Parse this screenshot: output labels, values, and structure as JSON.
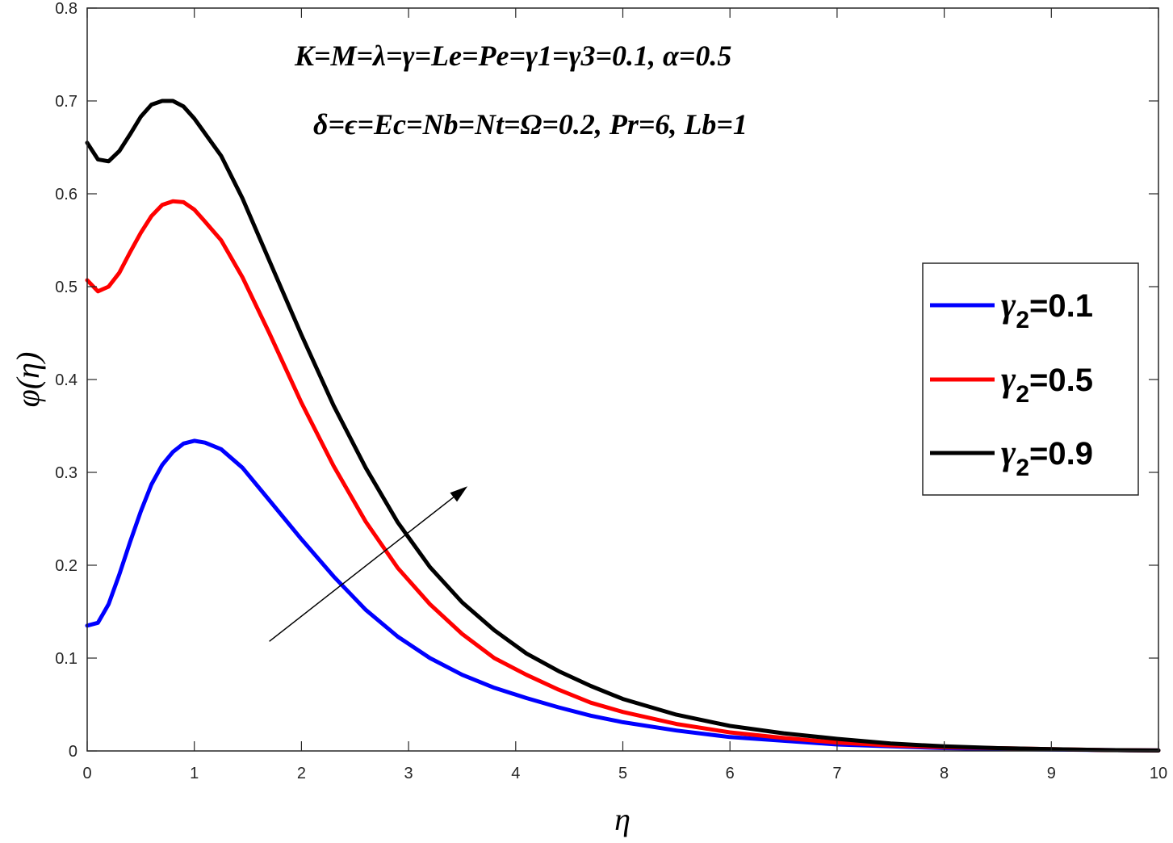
{
  "chart_data": {
    "type": "line",
    "title": "",
    "xlabel": "η",
    "ylabel": "φ(η)",
    "xlim": [
      0,
      10
    ],
    "ylim": [
      0,
      0.8
    ],
    "xticks": [
      "0",
      "1",
      "2",
      "3",
      "4",
      "5",
      "6",
      "7",
      "8",
      "9",
      "10"
    ],
    "yticks": [
      "0",
      "0.1",
      "0.2",
      "0.3",
      "0.4",
      "0.5",
      "0.6",
      "0.7",
      "0.8"
    ],
    "grid": false,
    "legend_position": "right",
    "annotations": [
      "K=M=λ=γ=Le=Pe=γ1=γ3=0.1, α=0.5",
      "δ=ϵ=Ec=Nb=Nt=Ω=0.2, Pr=6, Lb=1"
    ],
    "arrow": {
      "from": [
        1.7,
        0.118
      ],
      "to": [
        3.55,
        0.285
      ],
      "meaning": "increasing γ2"
    },
    "series": [
      {
        "name": "γ2=0.1",
        "legend_symbol": "γ",
        "legend_sub": "2",
        "legend_value": "=0.1",
        "color": "#0000ff",
        "x": [
          0,
          0.1,
          0.2,
          0.3,
          0.4,
          0.5,
          0.6,
          0.7,
          0.8,
          0.9,
          1.0,
          1.1,
          1.25,
          1.45,
          1.7,
          2.0,
          2.3,
          2.6,
          2.9,
          3.2,
          3.5,
          3.8,
          4.1,
          4.4,
          4.7,
          5.0,
          5.5,
          6.0,
          6.5,
          7.0,
          7.5,
          8.0,
          8.5,
          9.0,
          9.5,
          10.0
        ],
        "y": [
          0.135,
          0.138,
          0.158,
          0.19,
          0.225,
          0.258,
          0.287,
          0.308,
          0.322,
          0.331,
          0.334,
          0.332,
          0.325,
          0.305,
          0.27,
          0.228,
          0.188,
          0.152,
          0.123,
          0.1,
          0.082,
          0.068,
          0.057,
          0.047,
          0.038,
          0.031,
          0.022,
          0.015,
          0.011,
          0.007,
          0.005,
          0.003,
          0.002,
          0.0015,
          0.001,
          0.0005
        ]
      },
      {
        "name": "γ2=0.5",
        "legend_symbol": "γ",
        "legend_sub": "2",
        "legend_value": "=0.5",
        "color": "#ff0000",
        "x": [
          0,
          0.1,
          0.2,
          0.3,
          0.4,
          0.5,
          0.6,
          0.7,
          0.8,
          0.9,
          1.0,
          1.1,
          1.25,
          1.45,
          1.7,
          2.0,
          2.3,
          2.6,
          2.9,
          3.2,
          3.5,
          3.8,
          4.1,
          4.4,
          4.7,
          5.0,
          5.5,
          6.0,
          6.5,
          7.0,
          7.5,
          8.0,
          8.5,
          9.0,
          9.5,
          10.0
        ],
        "y": [
          0.507,
          0.495,
          0.5,
          0.515,
          0.537,
          0.558,
          0.576,
          0.588,
          0.592,
          0.591,
          0.583,
          0.57,
          0.55,
          0.51,
          0.45,
          0.375,
          0.307,
          0.247,
          0.197,
          0.158,
          0.126,
          0.1,
          0.082,
          0.066,
          0.052,
          0.042,
          0.029,
          0.02,
          0.014,
          0.009,
          0.006,
          0.004,
          0.003,
          0.002,
          0.001,
          0.0005
        ]
      },
      {
        "name": "γ2=0.9",
        "legend_symbol": "γ",
        "legend_sub": "2",
        "legend_value": "=0.9",
        "color": "#000000",
        "x": [
          0,
          0.1,
          0.2,
          0.3,
          0.4,
          0.5,
          0.6,
          0.7,
          0.8,
          0.9,
          1.0,
          1.1,
          1.25,
          1.45,
          1.7,
          2.0,
          2.3,
          2.6,
          2.9,
          3.2,
          3.5,
          3.8,
          4.1,
          4.4,
          4.7,
          5.0,
          5.5,
          6.0,
          6.5,
          7.0,
          7.5,
          8.0,
          8.5,
          9.0,
          9.5,
          10.0
        ],
        "y": [
          0.655,
          0.637,
          0.635,
          0.646,
          0.664,
          0.683,
          0.696,
          0.7,
          0.7,
          0.694,
          0.681,
          0.665,
          0.641,
          0.595,
          0.528,
          0.448,
          0.372,
          0.305,
          0.246,
          0.198,
          0.16,
          0.13,
          0.105,
          0.086,
          0.07,
          0.056,
          0.039,
          0.027,
          0.019,
          0.013,
          0.008,
          0.005,
          0.003,
          0.002,
          0.001,
          0.0005
        ]
      }
    ]
  }
}
